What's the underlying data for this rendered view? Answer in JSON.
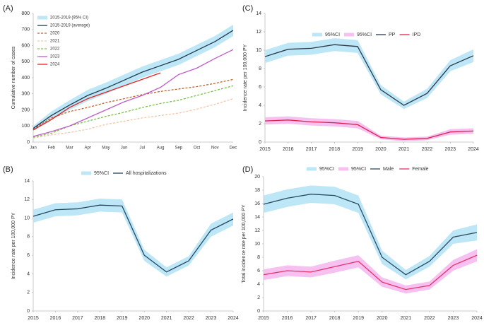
{
  "chart_data": [
    {
      "type": "line",
      "label": "(A)",
      "y_label": "Cumulative number of cases",
      "legend": "upper left",
      "grid": false,
      "categories": [
        "Jan",
        "Feb",
        "Mar",
        "Apr",
        "May",
        "Jun",
        "Jul",
        "Aug",
        "Sep",
        "Oct",
        "Nov",
        "Dec"
      ],
      "ylim": [
        0,
        800
      ],
      "yticks": [
        0,
        100,
        200,
        300,
        400,
        500,
        600,
        700,
        800
      ],
      "series": [
        {
          "name": "2015-2019 (95% CI)",
          "color": "#bde6f7",
          "lower": [
            70,
            140,
            200,
            255,
            300,
            350,
            400,
            440,
            480,
            535,
            590,
            660
          ],
          "upper": [
            100,
            190,
            260,
            325,
            370,
            420,
            470,
            510,
            550,
            605,
            660,
            730
          ]
        },
        {
          "name": "2015-2019 (average)",
          "color": "#1f3a4d",
          "values": [
            85,
            165,
            230,
            290,
            335,
            385,
            435,
            475,
            515,
            570,
            625,
            695
          ]
        },
        {
          "name": "2020",
          "color": "#c0622a",
          "dash": true,
          "values": [
            80,
            150,
            190,
            215,
            245,
            270,
            295,
            315,
            330,
            345,
            365,
            390
          ]
        },
        {
          "name": "2021",
          "color": "#f4c6a8",
          "dash": true,
          "values": [
            25,
            45,
            60,
            80,
            110,
            130,
            150,
            165,
            180,
            205,
            235,
            270
          ]
        },
        {
          "name": "2022",
          "color": "#7ac143",
          "dash": true,
          "values": [
            30,
            55,
            100,
            130,
            160,
            185,
            215,
            240,
            260,
            290,
            320,
            350
          ]
        },
        {
          "name": "2023",
          "color": "#bf5cc8",
          "values": [
            35,
            65,
            100,
            150,
            200,
            250,
            290,
            340,
            420,
            460,
            520,
            575
          ]
        },
        {
          "name": "2024",
          "color": "#e32222",
          "values": [
            75,
            140,
            215,
            270,
            310,
            350,
            390,
            430,
            null,
            null,
            null,
            null
          ]
        }
      ]
    },
    {
      "type": "line",
      "label": "(B)",
      "y_label": "Incidence rate per 100,000 PY",
      "legend": "top",
      "grid": false,
      "x": [
        2015,
        2016,
        2017,
        2018,
        2019,
        2020,
        2021,
        2022,
        2023,
        2024
      ],
      "xlim": [
        2015,
        2024
      ],
      "xticks": [
        2015,
        2016,
        2017,
        2018,
        2019,
        2020,
        2021,
        2022,
        2023,
        2024
      ],
      "ylim": [
        0,
        14
      ],
      "yticks": [
        0,
        2,
        4,
        6,
        8,
        10,
        12,
        14
      ],
      "series": [
        {
          "name": "95%CI",
          "color": "#bde6f7",
          "lower": [
            9.5,
            10.2,
            10.3,
            10.7,
            10.6,
            5.4,
            3.7,
            4.9,
            8.0,
            9.2
          ],
          "upper": [
            10.9,
            11.6,
            11.7,
            12.1,
            12.0,
            6.6,
            4.7,
            5.9,
            9.4,
            10.6
          ]
        },
        {
          "name": "All hospitalizations",
          "color": "#24475f",
          "values": [
            10.2,
            10.9,
            11.0,
            11.4,
            11.3,
            6.0,
            4.2,
            5.4,
            8.7,
            9.9
          ]
        }
      ]
    },
    {
      "type": "line",
      "label": "(C)",
      "y_label": "Incidence rate per 100,000 PY",
      "legend": "upper center",
      "grid": false,
      "x": [
        2015,
        2016,
        2017,
        2018,
        2019,
        2020,
        2021,
        2022,
        2023,
        2024
      ],
      "xlim": [
        2015,
        2024
      ],
      "xticks": [
        2015,
        2016,
        2017,
        2018,
        2019,
        2020,
        2021,
        2022,
        2023,
        2024
      ],
      "ylim": [
        0,
        14
      ],
      "yticks": [
        0,
        2,
        4,
        6,
        8,
        10,
        12,
        14
      ],
      "series": [
        {
          "name": "95%CI",
          "color": "#bde6f7",
          "lower": [
            8.6,
            9.4,
            9.5,
            9.9,
            9.7,
            5.2,
            3.6,
            4.8,
            7.7,
            8.7
          ],
          "upper": [
            10.0,
            10.8,
            10.9,
            11.3,
            11.1,
            6.2,
            4.4,
            5.8,
            8.9,
            10.1
          ]
        },
        {
          "name": "95%CI",
          "color": "#f6c1f0",
          "lower": [
            1.9,
            2.0,
            1.8,
            1.7,
            1.5,
            0.3,
            0.1,
            0.2,
            0.8,
            0.9
          ],
          "upper": [
            2.7,
            2.8,
            2.6,
            2.5,
            2.3,
            0.7,
            0.5,
            0.6,
            1.4,
            1.5
          ]
        },
        {
          "name": "PP",
          "color": "#2b3a4a",
          "values": [
            9.3,
            10.1,
            10.2,
            10.6,
            10.4,
            5.7,
            4.0,
            5.3,
            8.3,
            9.4
          ]
        },
        {
          "name": "IPD",
          "color": "#e0224e",
          "values": [
            2.3,
            2.4,
            2.2,
            2.1,
            1.9,
            0.5,
            0.3,
            0.4,
            1.1,
            1.2
          ]
        }
      ]
    },
    {
      "type": "line",
      "label": "(D)",
      "y_label": "Total incidence rate per 100,000 PY",
      "legend": "top",
      "grid": false,
      "x": [
        2015,
        2016,
        2017,
        2018,
        2019,
        2020,
        2021,
        2022,
        2023,
        2024
      ],
      "xlim": [
        2015,
        2024
      ],
      "xticks": [
        2015,
        2016,
        2017,
        2018,
        2019,
        2020,
        2021,
        2022,
        2023,
        2024
      ],
      "ylim": [
        0,
        20
      ],
      "yticks": [
        0,
        2,
        4,
        6,
        8,
        10,
        12,
        14,
        16,
        18,
        20
      ],
      "series": [
        {
          "name": "95%CI",
          "color": "#bde6f7",
          "lower": [
            14.6,
            15.5,
            16.1,
            15.9,
            14.6,
            7.0,
            4.7,
            6.6,
            10.0,
            10.5
          ],
          "upper": [
            17.2,
            18.1,
            18.7,
            18.5,
            17.2,
            9.0,
            6.1,
            8.2,
            12.0,
            12.9
          ]
        },
        {
          "name": "95%CI",
          "color": "#f6c1f0",
          "lower": [
            4.6,
            5.2,
            5.0,
            5.7,
            6.5,
            3.6,
            2.6,
            3.2,
            6.0,
            7.4
          ],
          "upper": [
            6.2,
            6.8,
            6.6,
            7.5,
            8.3,
            5.0,
            3.8,
            4.4,
            7.6,
            9.2
          ]
        },
        {
          "name": "Male",
          "color": "#2a4a60",
          "values": [
            15.9,
            16.8,
            17.4,
            17.2,
            15.9,
            8.0,
            5.4,
            7.4,
            11.0,
            11.7
          ]
        },
        {
          "name": "Female",
          "color": "#e8336b",
          "values": [
            5.4,
            6.0,
            5.8,
            6.6,
            7.4,
            4.3,
            3.2,
            3.8,
            6.8,
            8.3
          ]
        }
      ]
    }
  ]
}
